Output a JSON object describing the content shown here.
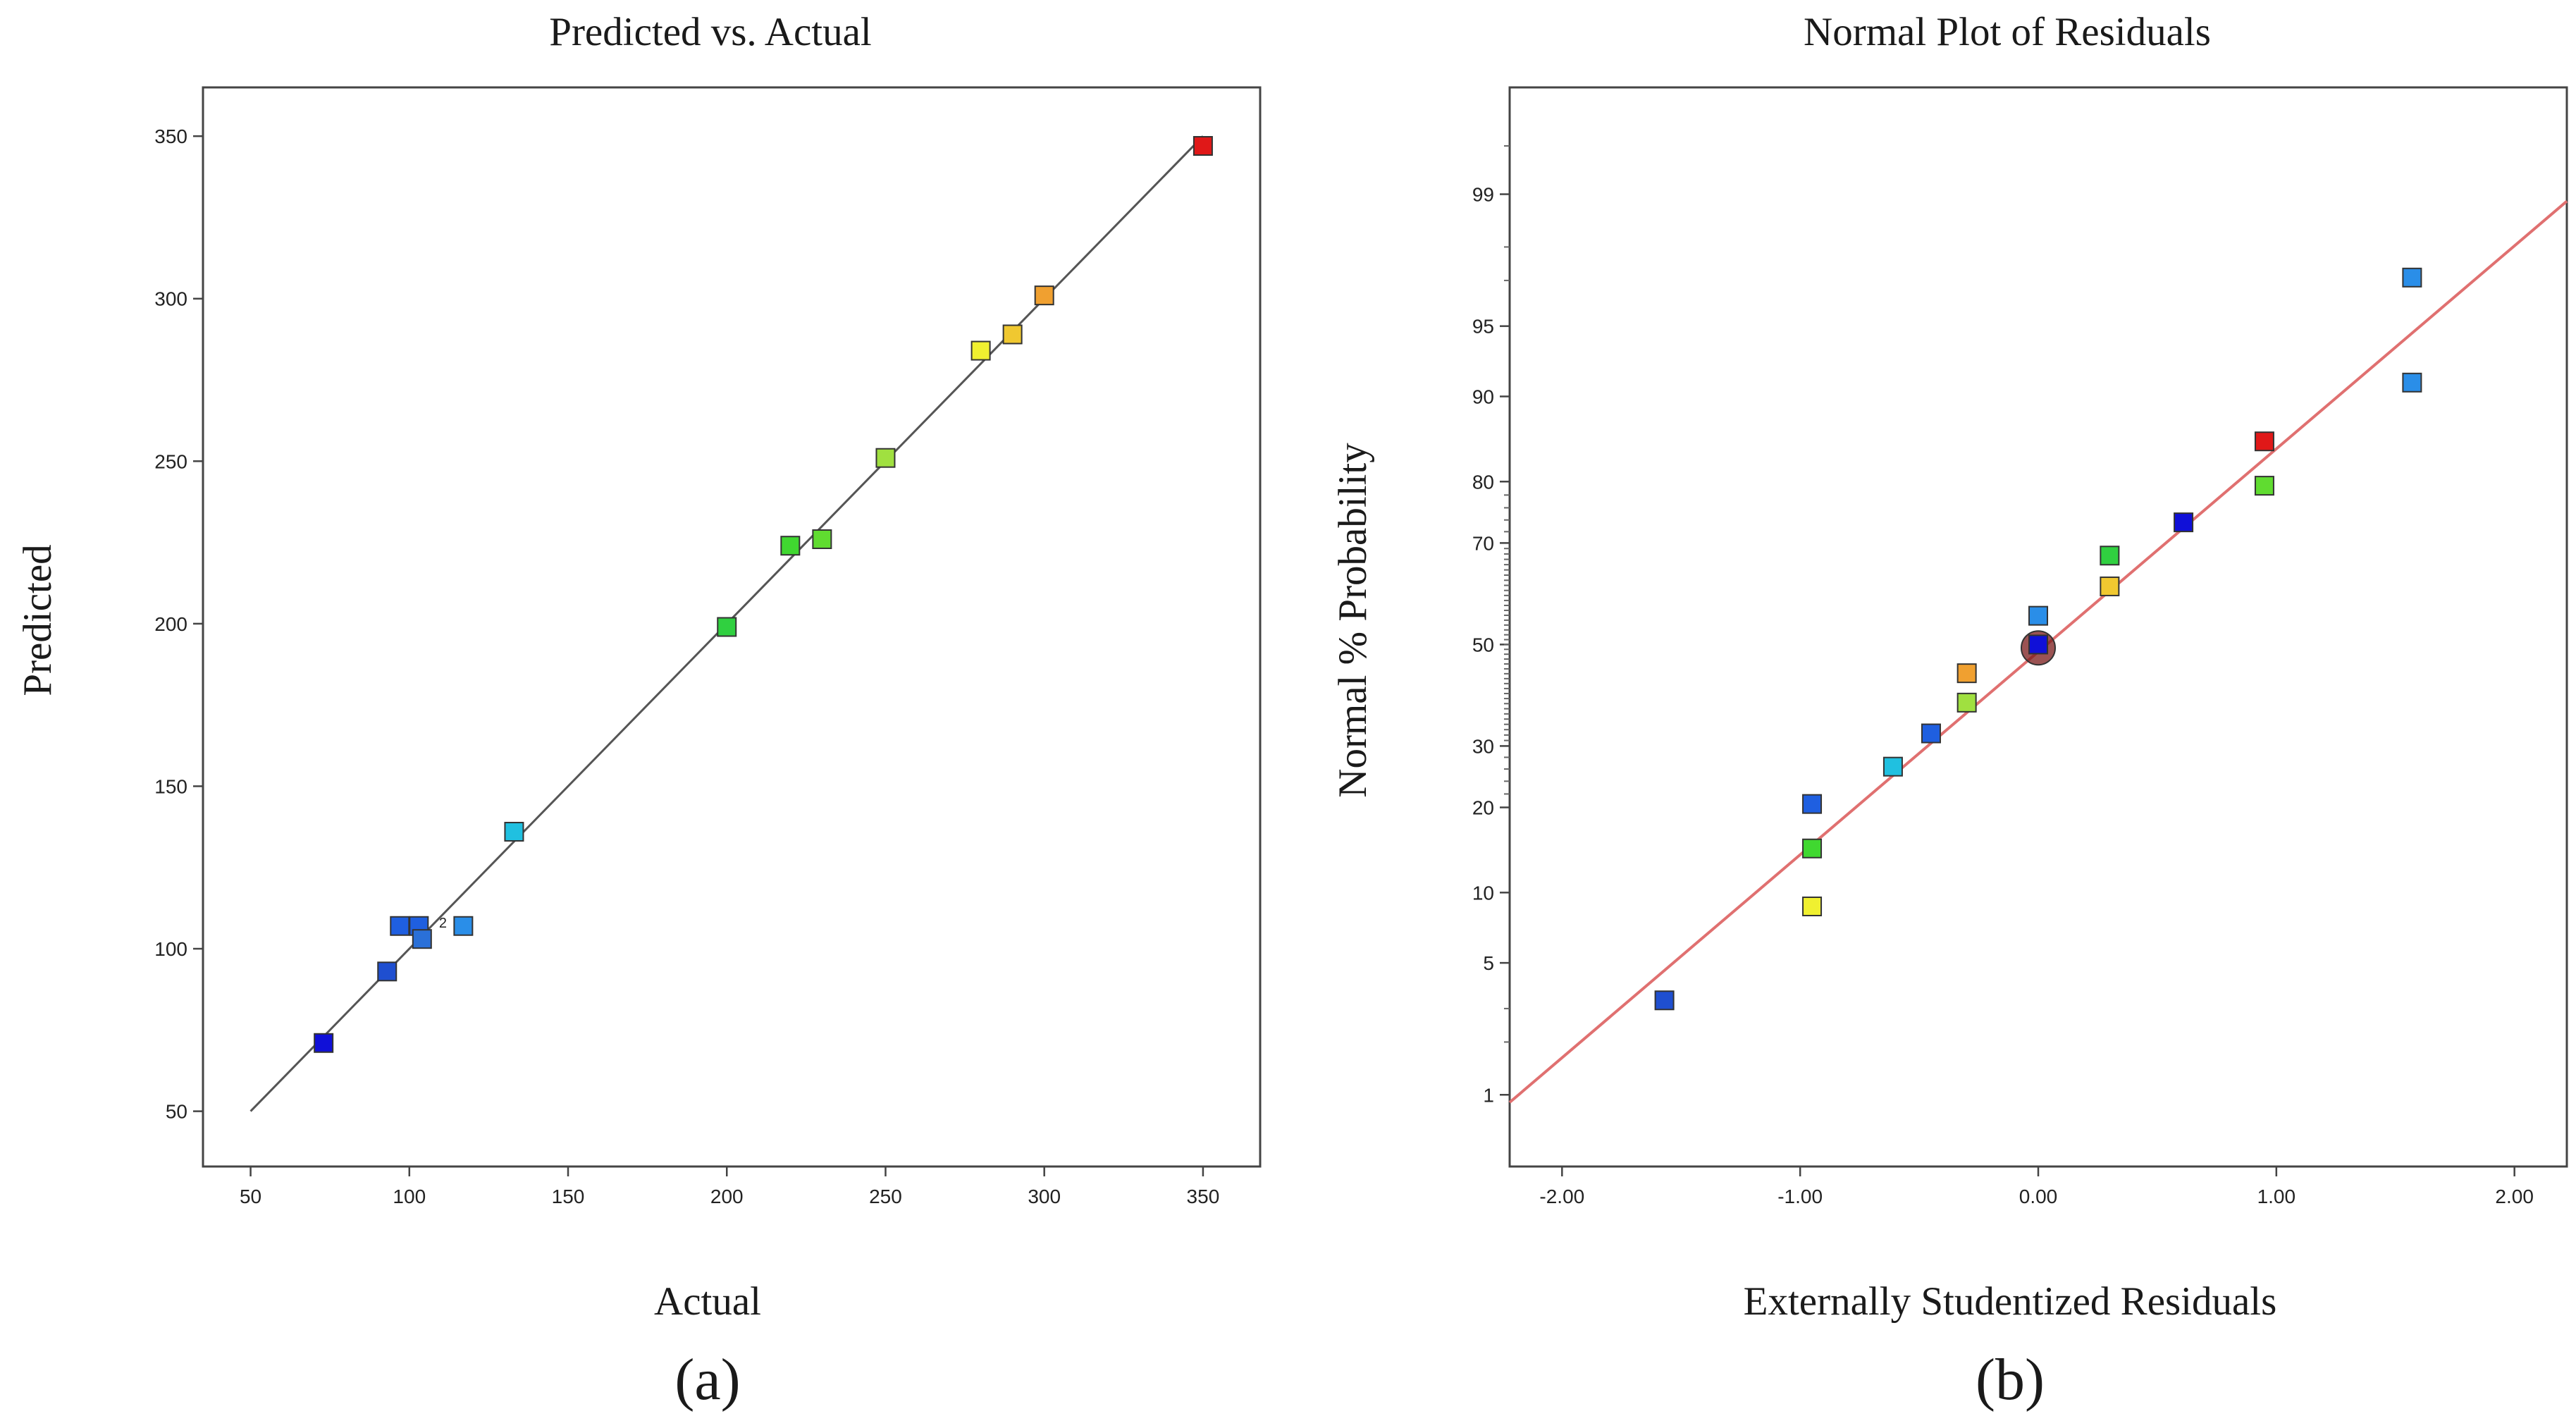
{
  "chart_data": [
    {
      "panel": "(a)",
      "type": "scatter",
      "title": "Predicted vs. Actual",
      "xlabel": "Actual",
      "ylabel": "Predicted",
      "xlim": [
        35,
        368
      ],
      "ylim": [
        33,
        365
      ],
      "xticks": [
        50,
        100,
        150,
        200,
        250,
        300,
        350
      ],
      "yticks": [
        50,
        100,
        150,
        200,
        250,
        300,
        350
      ],
      "reference_line": {
        "from": [
          50,
          50
        ],
        "to": [
          350,
          350
        ],
        "color": "#555555"
      },
      "annotations": [
        {
          "text": "2",
          "x": 108,
          "y": 107
        }
      ],
      "points": [
        {
          "x": 73,
          "y": 71,
          "color": "#1010d8"
        },
        {
          "x": 93,
          "y": 93,
          "color": "#1f4fd0"
        },
        {
          "x": 97,
          "y": 107,
          "color": "#1f5fe0"
        },
        {
          "x": 103,
          "y": 107,
          "color": "#1f5fe0"
        },
        {
          "x": 104,
          "y": 103,
          "color": "#2a70d8"
        },
        {
          "x": 117,
          "y": 107,
          "color": "#2a8ee8"
        },
        {
          "x": 133,
          "y": 136,
          "color": "#20c0e0"
        },
        {
          "x": 200,
          "y": 199,
          "color": "#30d040"
        },
        {
          "x": 220,
          "y": 224,
          "color": "#40d830"
        },
        {
          "x": 230,
          "y": 226,
          "color": "#60dc30"
        },
        {
          "x": 250,
          "y": 251,
          "color": "#a0e040"
        },
        {
          "x": 280,
          "y": 284,
          "color": "#f0f030"
        },
        {
          "x": 290,
          "y": 289,
          "color": "#f0c830"
        },
        {
          "x": 300,
          "y": 301,
          "color": "#f0a030"
        },
        {
          "x": 350,
          "y": 347,
          "color": "#e01818"
        }
      ]
    },
    {
      "panel": "(b)",
      "type": "scatter",
      "title": "Normal Plot of Residuals",
      "xlabel": "Externally Studentized Residuals",
      "ylabel": "Normal % Probability",
      "xlim": [
        -2.22,
        2.22
      ],
      "yscale": "normal-probability",
      "ylim_percent": [
        0.35,
        99.8
      ],
      "xticks": [
        -2,
        -1,
        0,
        1,
        2
      ],
      "xtick_labels": [
        "-2.00",
        "-1.00",
        "0.00",
        "1.00",
        "2.00"
      ],
      "yticks": [
        1,
        5,
        10,
        20,
        30,
        50,
        70,
        80,
        90,
        95,
        99
      ],
      "yticks_minor": [
        99.5,
        98,
        97,
        3,
        2
      ],
      "reference_line": {
        "from": [
          -2.22,
          0.9
        ],
        "to": [
          2.22,
          98.9
        ],
        "color": "#e07070"
      },
      "highlight": {
        "x": 0.0,
        "y": 49.3,
        "color": "#7a1a1a"
      },
      "points": [
        {
          "x": -1.57,
          "y": 3.3,
          "color": "#1f4fd0"
        },
        {
          "x": -0.95,
          "y": 8.8,
          "color": "#f0f030"
        },
        {
          "x": -0.95,
          "y": 14.6,
          "color": "#40d830"
        },
        {
          "x": -0.95,
          "y": 20.5,
          "color": "#1f5fe0"
        },
        {
          "x": -0.61,
          "y": 26.4,
          "color": "#20c0e0"
        },
        {
          "x": -0.45,
          "y": 32.3,
          "color": "#1f5fe0"
        },
        {
          "x": -0.3,
          "y": 38.2,
          "color": "#a0e040"
        },
        {
          "x": -0.3,
          "y": 44.1,
          "color": "#f0a030"
        },
        {
          "x": 0.0,
          "y": 50.0,
          "color": "#1010d8"
        },
        {
          "x": 0.0,
          "y": 55.9,
          "color": "#2a8ee8"
        },
        {
          "x": 0.3,
          "y": 61.8,
          "color": "#f0c830"
        },
        {
          "x": 0.3,
          "y": 67.7,
          "color": "#30d040"
        },
        {
          "x": 0.61,
          "y": 73.6,
          "color": "#1010d8"
        },
        {
          "x": 0.95,
          "y": 79.4,
          "color": "#60dc30"
        },
        {
          "x": 0.95,
          "y": 85.3,
          "color": "#e01818"
        },
        {
          "x": 1.57,
          "y": 91.2,
          "color": "#2a8ee8"
        },
        {
          "x": 1.57,
          "y": 97.1,
          "color": "#2a8ee8"
        }
      ]
    }
  ]
}
